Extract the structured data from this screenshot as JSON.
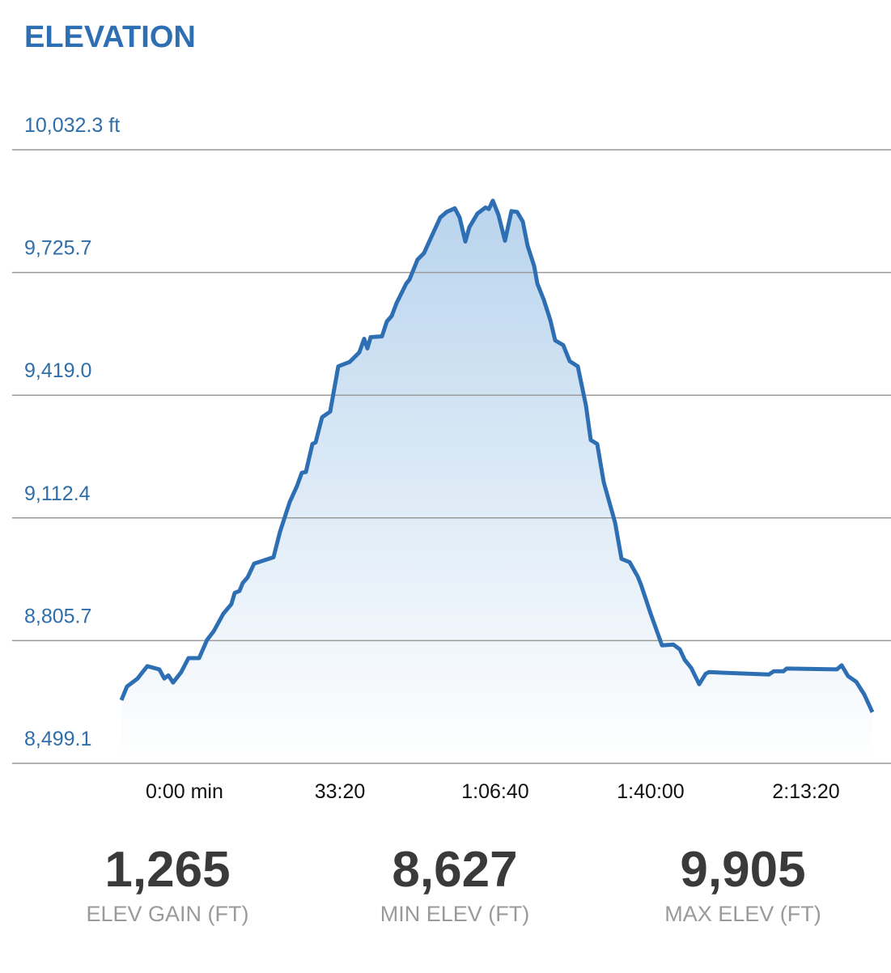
{
  "chart_data": {
    "type": "area",
    "title": "ELEVATION",
    "x": [
      -812,
      -740,
      -604,
      -479,
      -323,
      -260,
      -208,
      -146,
      -42,
      52,
      188,
      292,
      375,
      500,
      604,
      646,
      708,
      750,
      813,
      896,
      1146,
      1229,
      1354,
      1448,
      1510,
      1563,
      1646,
      1688,
      1771,
      1875,
      1979,
      2125,
      2250,
      2313,
      2354,
      2396,
      2542,
      2604,
      2667,
      2729,
      2854,
      2896,
      3000,
      3083,
      3188,
      3292,
      3375,
      3479,
      3542,
      3615,
      3667,
      3771,
      3875,
      3917,
      3969,
      4042,
      4125,
      4208,
      4281,
      4354,
      4417,
      4500,
      4542,
      4625,
      4708,
      4771,
      4875,
      4958,
      5063,
      5167,
      5229,
      5313,
      5396,
      5542,
      5625,
      5729,
      5833,
      5875,
      6000,
      6146,
      6292,
      6375,
      6438,
      6521,
      6625,
      6708,
      6750,
      7521,
      7583,
      7708,
      7750,
      8396,
      8458,
      8542,
      8646,
      8750,
      8854
    ],
    "series": [
      {
        "color": "#2e6fb3",
        "values": [
          8657,
          8691,
          8711,
          8742,
          8734,
          8711,
          8719,
          8701,
          8727,
          8762,
          8762,
          8808,
          8829,
          8873,
          8897,
          8925,
          8930,
          8950,
          8964,
          8998,
          9014,
          9077,
          9152,
          9192,
          9225,
          9227,
          9297,
          9301,
          9364,
          9378,
          9491,
          9502,
          9526,
          9560,
          9536,
          9564,
          9566,
          9603,
          9617,
          9649,
          9698,
          9708,
          9758,
          9774,
          9819,
          9863,
          9877,
          9886,
          9863,
          9803,
          9839,
          9873,
          9888,
          9884,
          9905,
          9869,
          9805,
          9879,
          9877,
          9853,
          9792,
          9742,
          9698,
          9657,
          9607,
          9556,
          9544,
          9504,
          9491,
          9394,
          9307,
          9297,
          9202,
          9101,
          9010,
          9002,
          8966,
          8946,
          8873,
          8794,
          8796,
          8784,
          8758,
          8738,
          8697,
          8723,
          8727,
          8721,
          8729,
          8729,
          8736,
          8734,
          8744,
          8717,
          8703,
          8671,
          8627
        ]
      }
    ],
    "xlim": [
      -812,
      8854
    ],
    "xticks": [
      {
        "value": 0,
        "label": "0:00 min"
      },
      {
        "value": 2000,
        "label": "33:20"
      },
      {
        "value": 4000,
        "label": "1:06:40"
      },
      {
        "value": 6000,
        "label": "1:40:00"
      },
      {
        "value": 8000,
        "label": "2:13:20"
      }
    ],
    "ylim": [
      8499.1,
      10032.3
    ],
    "yticks": [
      {
        "value": 8499.1,
        "label": "8,499.1"
      },
      {
        "value": 8805.7,
        "label": "8,805.7"
      },
      {
        "value": 9112.4,
        "label": "9,112.4"
      },
      {
        "value": 9419.0,
        "label": "9,419.0"
      },
      {
        "value": 9725.7,
        "label": "9,725.7"
      },
      {
        "value": 10032.3,
        "label": "10,032.3 ft"
      }
    ],
    "grid": true
  },
  "stats": [
    {
      "value": "1,265",
      "label": "ELEV GAIN (FT)"
    },
    {
      "value": "8,627",
      "label": "MIN ELEV (FT)"
    },
    {
      "value": "9,905",
      "label": "MAX ELEV (FT)"
    }
  ]
}
